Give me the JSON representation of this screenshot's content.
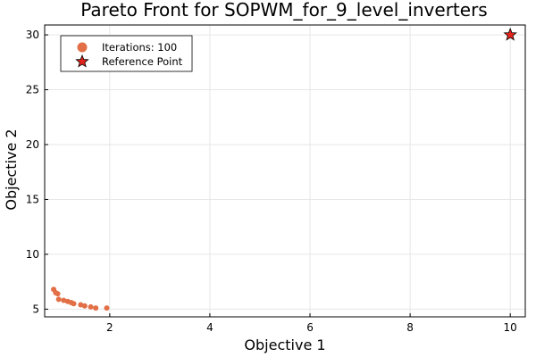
{
  "chart_data": {
    "type": "scatter",
    "title": "Pareto Front for SOPWM_for_9_level_inverters",
    "xlabel": "Objective 1",
    "ylabel": "Objective 2",
    "xlim": [
      0.7,
      10.3
    ],
    "ylim": [
      4.3,
      30.9
    ],
    "xticks": [
      2,
      4,
      6,
      8,
      10
    ],
    "yticks": [
      5,
      10,
      15,
      20,
      25,
      30
    ],
    "xtick_labels": [
      "2",
      "4",
      "6",
      "8",
      "10"
    ],
    "ytick_labels": [
      "5",
      "10",
      "15",
      "20",
      "25",
      "30"
    ],
    "grid": true,
    "legend_position": "top-left",
    "series": [
      {
        "name": "Iterations: 100",
        "marker": "circle",
        "color": "#e26f46",
        "points": [
          [
            0.88,
            6.8
          ],
          [
            0.92,
            6.5
          ],
          [
            0.96,
            6.4
          ],
          [
            0.98,
            5.9
          ],
          [
            1.08,
            5.8
          ],
          [
            1.16,
            5.7
          ],
          [
            1.23,
            5.6
          ],
          [
            1.28,
            5.5
          ],
          [
            1.42,
            5.4
          ],
          [
            1.5,
            5.3
          ],
          [
            1.62,
            5.2
          ],
          [
            1.72,
            5.1
          ],
          [
            1.94,
            5.1
          ]
        ]
      },
      {
        "name": "Reference Point",
        "marker": "star",
        "color": "#e4241c",
        "points": [
          [
            10,
            30
          ]
        ]
      }
    ]
  }
}
